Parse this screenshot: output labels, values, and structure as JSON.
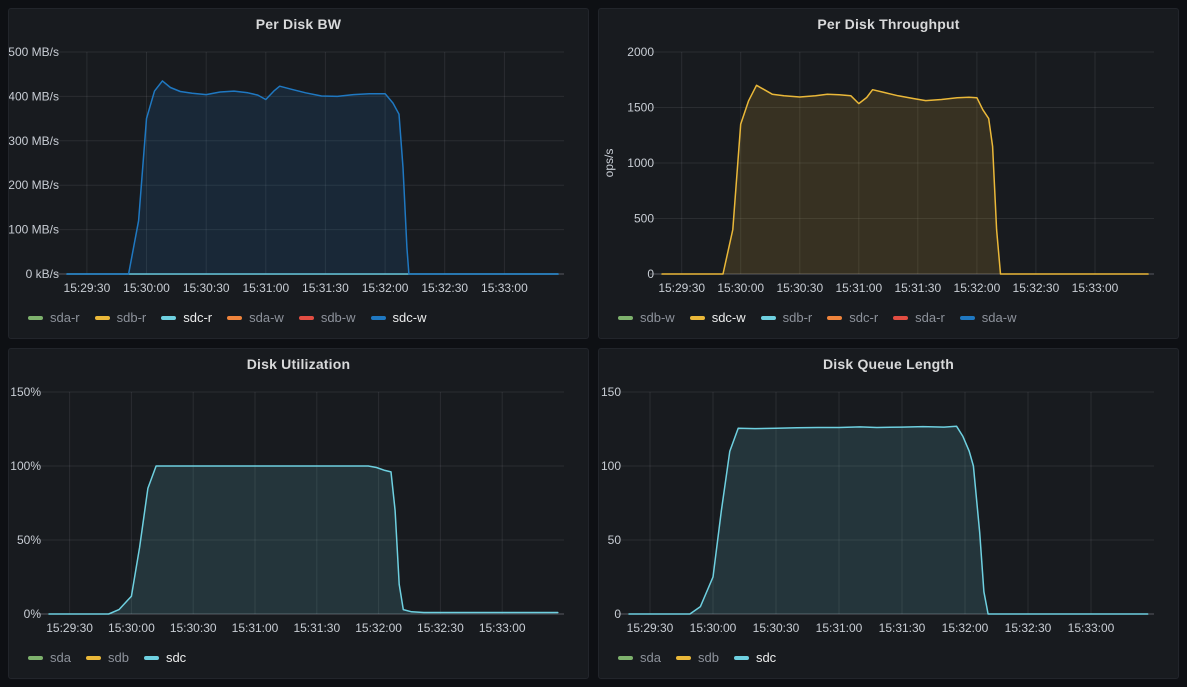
{
  "style": {
    "page_bg": "#0e1014",
    "panel_bg": "#181b1f",
    "panel_border": "#22252b",
    "title_color": "#d8d9da",
    "axis_text_color": "#c8cdd4",
    "grid_color": "rgba(204,204,220,0.10)",
    "baseline_color": "rgba(204,204,220,0.28)",
    "legend_dim_color": "#8d929b",
    "legend_active_color": "#eceded",
    "fill_opacity": 0.15
  },
  "palette": {
    "green": "#7EB26D",
    "yellow": "#EAB839",
    "cyan": "#6ED0E0",
    "orange": "#EF843C",
    "red": "#E24D42",
    "blue": "#1F78C1"
  },
  "time_axis": {
    "domain": [
      0,
      250
    ],
    "ticks": [
      {
        "t": 10,
        "label": "15:29:30"
      },
      {
        "t": 40,
        "label": "15:30:00"
      },
      {
        "t": 70,
        "label": "15:30:30"
      },
      {
        "t": 100,
        "label": "15:31:00"
      },
      {
        "t": 130,
        "label": "15:31:30"
      },
      {
        "t": 160,
        "label": "15:32:00"
      },
      {
        "t": 190,
        "label": "15:32:30"
      },
      {
        "t": 220,
        "label": "15:33:00"
      }
    ]
  },
  "chart_data": [
    {
      "type": "area",
      "title": "Per Disk BW",
      "ylabel": "",
      "ylim": [
        0,
        500
      ],
      "y_ticks": [
        {
          "v": 0,
          "label": "0 kB/s"
        },
        {
          "v": 100,
          "label": "100 MB/s"
        },
        {
          "v": 200,
          "label": "200 MB/s"
        },
        {
          "v": 300,
          "label": "300 MB/s"
        },
        {
          "v": 400,
          "label": "400 MB/s"
        },
        {
          "v": 500,
          "label": "500 MB/s"
        }
      ],
      "series": [
        {
          "name": "sdc-r",
          "color": "cyan",
          "fill": false,
          "points": [
            [
              0,
              0
            ],
            [
              247,
              0
            ]
          ]
        },
        {
          "name": "sdc-w",
          "color": "blue",
          "fill": true,
          "points": [
            [
              0,
              0
            ],
            [
              31,
              0
            ],
            [
              36,
              120
            ],
            [
              40,
              350
            ],
            [
              44,
              412
            ],
            [
              48,
              435
            ],
            [
              52,
              420
            ],
            [
              57,
              411
            ],
            [
              63,
              407
            ],
            [
              70,
              404
            ],
            [
              77,
              410
            ],
            [
              84,
              412
            ],
            [
              91,
              408
            ],
            [
              96,
              403
            ],
            [
              100,
              393
            ],
            [
              104,
              412
            ],
            [
              107,
              423
            ],
            [
              113,
              416
            ],
            [
              120,
              408
            ],
            [
              128,
              401
            ],
            [
              136,
              400
            ],
            [
              144,
              404
            ],
            [
              152,
              406
            ],
            [
              160,
              406
            ],
            [
              164,
              385
            ],
            [
              167,
              360
            ],
            [
              169,
              240
            ],
            [
              171,
              60
            ],
            [
              172,
              0
            ],
            [
              247,
              0
            ]
          ]
        }
      ],
      "legend": [
        {
          "label": "sda-r",
          "color": "green",
          "active": false
        },
        {
          "label": "sdb-r",
          "color": "yellow",
          "active": false
        },
        {
          "label": "sdc-r",
          "color": "cyan",
          "active": true
        },
        {
          "label": "sda-w",
          "color": "orange",
          "active": false
        },
        {
          "label": "sdb-w",
          "color": "red",
          "active": false
        },
        {
          "label": "sdc-w",
          "color": "blue",
          "active": true
        }
      ]
    },
    {
      "type": "area",
      "title": "Per Disk Throughput",
      "ylabel": "ops/s",
      "ylim": [
        0,
        2000
      ],
      "y_ticks": [
        {
          "v": 0,
          "label": "0"
        },
        {
          "v": 500,
          "label": "500"
        },
        {
          "v": 1000,
          "label": "1000"
        },
        {
          "v": 1500,
          "label": "1500"
        },
        {
          "v": 2000,
          "label": "2000"
        }
      ],
      "series": [
        {
          "name": "sdc-w",
          "color": "yellow",
          "fill": true,
          "points": [
            [
              0,
              0
            ],
            [
              31,
              0
            ],
            [
              36,
              400
            ],
            [
              40,
              1350
            ],
            [
              44,
              1560
            ],
            [
              48,
              1700
            ],
            [
              52,
              1660
            ],
            [
              56,
              1620
            ],
            [
              62,
              1605
            ],
            [
              70,
              1595
            ],
            [
              78,
              1605
            ],
            [
              84,
              1620
            ],
            [
              90,
              1615
            ],
            [
              96,
              1605
            ],
            [
              100,
              1535
            ],
            [
              104,
              1590
            ],
            [
              107,
              1660
            ],
            [
              113,
              1635
            ],
            [
              120,
              1605
            ],
            [
              128,
              1580
            ],
            [
              134,
              1562
            ],
            [
              142,
              1572
            ],
            [
              150,
              1588
            ],
            [
              156,
              1592
            ],
            [
              160,
              1588
            ],
            [
              163,
              1480
            ],
            [
              166,
              1400
            ],
            [
              168,
              1150
            ],
            [
              170,
              400
            ],
            [
              172,
              0
            ],
            [
              247,
              0
            ]
          ]
        }
      ],
      "legend": [
        {
          "label": "sdb-w",
          "color": "green",
          "active": false
        },
        {
          "label": "sdc-w",
          "color": "yellow",
          "active": true
        },
        {
          "label": "sdb-r",
          "color": "cyan",
          "active": false
        },
        {
          "label": "sdc-r",
          "color": "orange",
          "active": false
        },
        {
          "label": "sda-r",
          "color": "red",
          "active": false
        },
        {
          "label": "sda-w",
          "color": "blue",
          "active": false
        }
      ]
    },
    {
      "type": "area",
      "title": "Disk Utilization",
      "ylabel": "",
      "ylim": [
        0,
        150
      ],
      "y_ticks": [
        {
          "v": 0,
          "label": "0%"
        },
        {
          "v": 50,
          "label": "50%"
        },
        {
          "v": 100,
          "label": "100%"
        },
        {
          "v": 150,
          "label": "150%"
        }
      ],
      "series": [
        {
          "name": "sdc",
          "color": "cyan",
          "fill": true,
          "points": [
            [
              0,
              0
            ],
            [
              29,
              0
            ],
            [
              34,
              3
            ],
            [
              40,
              12
            ],
            [
              44,
              45
            ],
            [
              48,
              85
            ],
            [
              52,
              100
            ],
            [
              155,
              100
            ],
            [
              159,
              99
            ],
            [
              163,
              97
            ],
            [
              166,
              96
            ],
            [
              168,
              70
            ],
            [
              170,
              20
            ],
            [
              172,
              3
            ],
            [
              176,
              1.5
            ],
            [
              182,
              1
            ],
            [
              247,
              1
            ]
          ]
        }
      ],
      "legend": [
        {
          "label": "sda",
          "color": "green",
          "active": false
        },
        {
          "label": "sdb",
          "color": "yellow",
          "active": false
        },
        {
          "label": "sdc",
          "color": "cyan",
          "active": true
        }
      ]
    },
    {
      "type": "area",
      "title": "Disk Queue Length",
      "ylabel": "",
      "ylim": [
        0,
        150
      ],
      "y_ticks": [
        {
          "v": 0,
          "label": "0"
        },
        {
          "v": 50,
          "label": "50"
        },
        {
          "v": 100,
          "label": "100"
        },
        {
          "v": 150,
          "label": "150"
        }
      ],
      "series": [
        {
          "name": "sdc",
          "color": "cyan",
          "fill": true,
          "points": [
            [
              0,
              0
            ],
            [
              29,
              0
            ],
            [
              34,
              5
            ],
            [
              40,
              25
            ],
            [
              44,
              70
            ],
            [
              48,
              110
            ],
            [
              52,
              125.5
            ],
            [
              60,
              125.3
            ],
            [
              70,
              125.5
            ],
            [
              80,
              125.8
            ],
            [
              90,
              126
            ],
            [
              100,
              126
            ],
            [
              110,
              126.4
            ],
            [
              118,
              126
            ],
            [
              130,
              126.3
            ],
            [
              140,
              126.6
            ],
            [
              150,
              126.3
            ],
            [
              156,
              126.8
            ],
            [
              159,
              120
            ],
            [
              162,
              110
            ],
            [
              164,
              100
            ],
            [
              167,
              55
            ],
            [
              169,
              15
            ],
            [
              171,
              0
            ],
            [
              247,
              0
            ]
          ]
        }
      ],
      "legend": [
        {
          "label": "sda",
          "color": "green",
          "active": false
        },
        {
          "label": "sdb",
          "color": "yellow",
          "active": false
        },
        {
          "label": "sdc",
          "color": "cyan",
          "active": true
        }
      ]
    }
  ]
}
